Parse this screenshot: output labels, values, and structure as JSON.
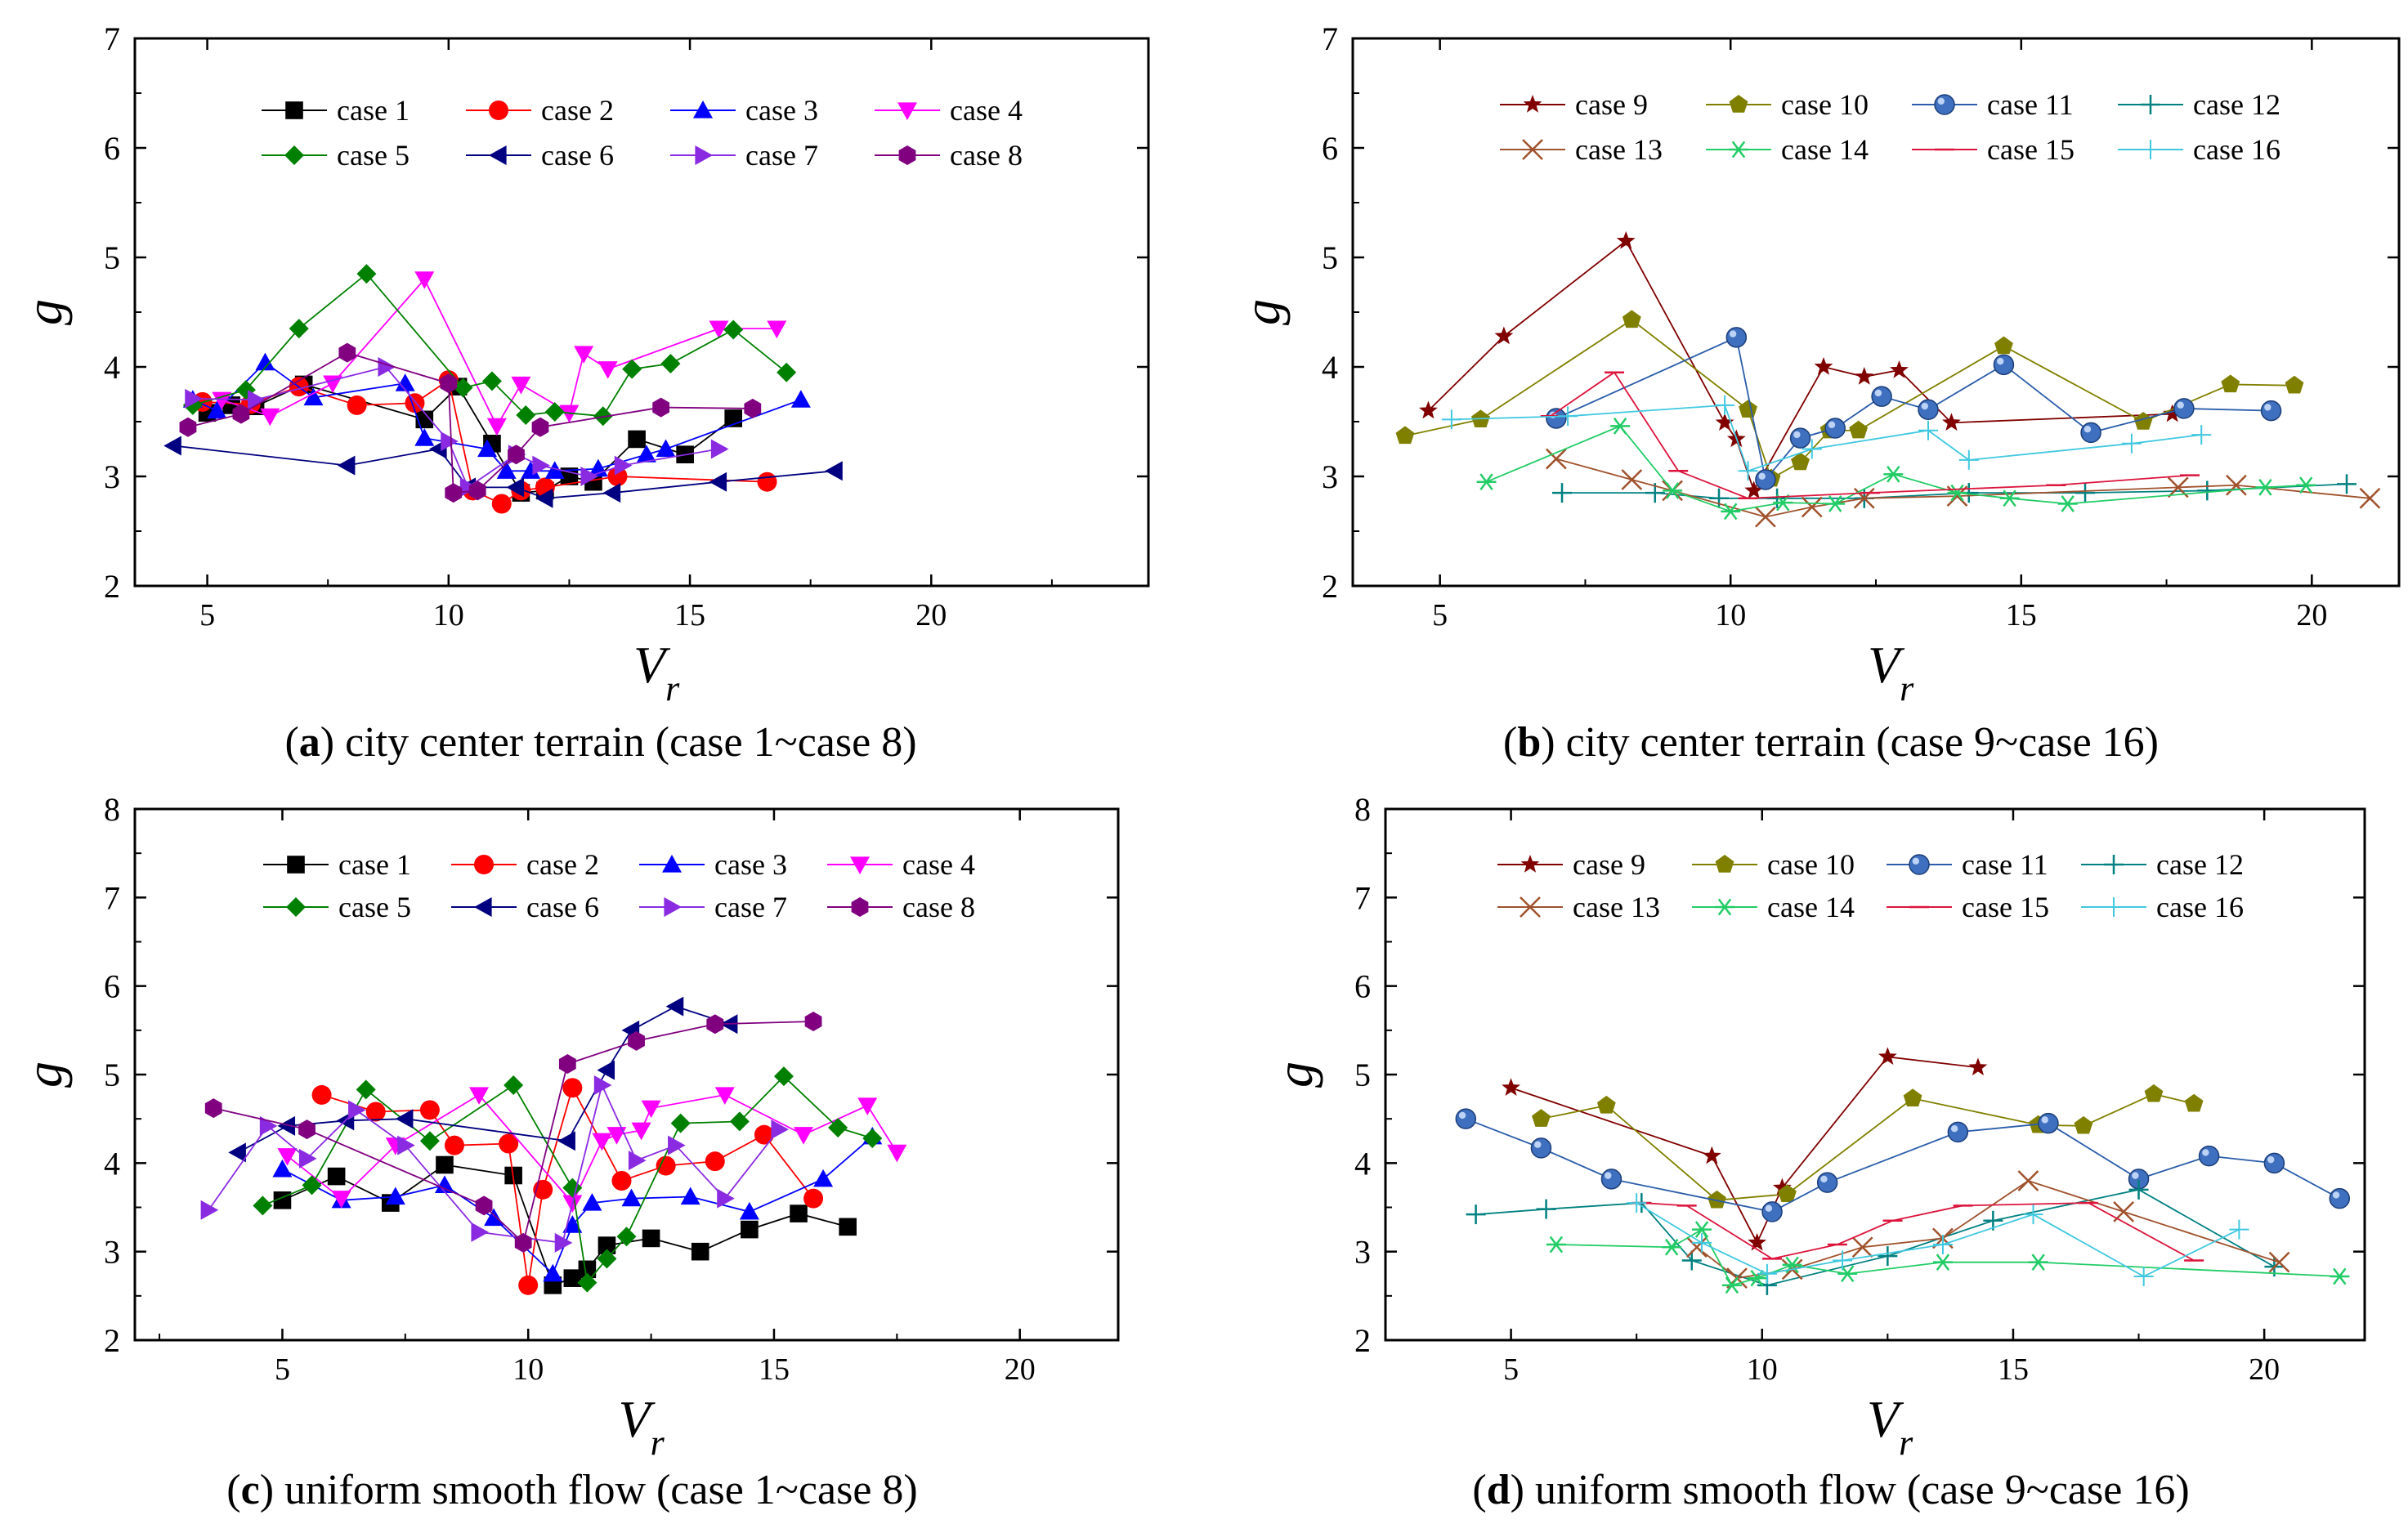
{
  "figure": {
    "xlabel": "V",
    "xlabel_sub": "r",
    "ylabel": "g"
  },
  "chart_data": [
    {
      "type": "line",
      "caption_letter": "(a)",
      "caption_text": " city center terrain (case 1~case 8)",
      "xlabel": "Vr",
      "ylabel": "g",
      "xlim": [
        3.5,
        24.5
      ],
      "ylim": [
        2,
        7
      ],
      "xticks": [
        5,
        10,
        15,
        20
      ],
      "yticks": [
        2,
        3,
        4,
        5,
        6,
        7
      ],
      "series": [
        {
          "name": "case 1",
          "color": "#000000",
          "marker": "square",
          "x": [
            5,
            5.5,
            6,
            7,
            9.5,
            10.2,
            10.9,
            11.5,
            12,
            12.5,
            13,
            13.9,
            14.9,
            15.9
          ],
          "y": [
            3.58,
            3.65,
            3.64,
            3.84,
            3.52,
            3.82,
            3.3,
            2.85,
            2.87,
            3,
            2.95,
            3.34,
            3.2,
            3.53
          ]
        },
        {
          "name": "case 2",
          "color": "#ff0000",
          "marker": "circle",
          "x": [
            4.9,
            5.9,
            6.9,
            8.1,
            9.3,
            10,
            10.5,
            11.1,
            11.5,
            12,
            13.5,
            16.6
          ],
          "y": [
            3.68,
            3.66,
            3.82,
            3.65,
            3.67,
            3.88,
            2.87,
            2.75,
            2.87,
            2.9,
            3,
            2.95
          ]
        },
        {
          "name": "case 3",
          "color": "#0000ff",
          "marker": "triangle-up",
          "x": [
            4.7,
            5.2,
            6.2,
            7.2,
            9.1,
            9.5,
            10.8,
            11.2,
            11.7,
            12.2,
            13.1,
            14.1,
            14.5,
            17.3
          ],
          "y": [
            3.7,
            3.6,
            4.04,
            3.72,
            3.85,
            3.35,
            3.25,
            3.05,
            3.05,
            3.05,
            3.07,
            3.2,
            3.25,
            3.7
          ]
        },
        {
          "name": "case 4",
          "color": "#ff00ff",
          "marker": "triangle-down",
          "x": [
            5.3,
            6.3,
            7.6,
            9.5,
            11,
            11.5,
            12.5,
            12.8,
            13.3,
            15.6,
            16.8
          ],
          "y": [
            3.7,
            3.55,
            3.85,
            4.8,
            3.46,
            3.84,
            3.58,
            4.12,
            3.98,
            4.35,
            4.35
          ]
        },
        {
          "name": "case 5",
          "color": "#008000",
          "marker": "diamond",
          "x": [
            4.7,
            5.8,
            6.9,
            8.3,
            10.3,
            10.9,
            11.6,
            12.2,
            13.2,
            13.8,
            14.6,
            15.9,
            17
          ],
          "y": [
            3.65,
            3.79,
            4.35,
            4.85,
            3.81,
            3.87,
            3.56,
            3.59,
            3.55,
            3.98,
            4.03,
            4.34,
            3.95
          ]
        },
        {
          "name": "case 6",
          "color": "#000080",
          "marker": "triangle-left",
          "x": [
            4.3,
            7.9,
            9.8,
            10.4,
            11.4,
            12,
            13.4,
            15.6,
            18
          ],
          "y": [
            3.28,
            3.1,
            3.25,
            2.9,
            2.9,
            2.8,
            2.85,
            2.95,
            3.05
          ]
        },
        {
          "name": "case 7",
          "color": "#8a2be2",
          "marker": "triangle-right",
          "x": [
            4.7,
            6,
            8.7,
            10,
            10.4,
            11.4,
            11.9,
            12.9,
            13.6,
            15.6
          ],
          "y": [
            3.71,
            3.7,
            4,
            3.32,
            2.9,
            3.2,
            3.1,
            3,
            3.1,
            3.25
          ]
        },
        {
          "name": "case 8",
          "color": "#800080",
          "marker": "hexagon",
          "x": [
            4.6,
            5.7,
            7.9,
            10,
            10.1,
            10.6,
            11.4,
            11.9,
            14.4,
            16.3
          ],
          "y": [
            3.45,
            3.57,
            4.13,
            3.85,
            2.85,
            2.87,
            3.2,
            3.45,
            3.63,
            3.62
          ]
        }
      ]
    },
    {
      "type": "line",
      "caption_letter": "(b)",
      "caption_text": " city center terrain (case 9~case 16)",
      "xlabel": "Vr",
      "ylabel": "g",
      "xlim": [
        3.5,
        21.5
      ],
      "ylim": [
        2,
        7
      ],
      "xticks": [
        5,
        10,
        15,
        20
      ],
      "yticks": [
        2,
        3,
        4,
        5,
        6,
        7
      ],
      "series": [
        {
          "name": "case 9",
          "color": "#800000",
          "marker": "star",
          "x": [
            4.8,
            6.1,
            8.2,
            9.9,
            10.1,
            10.4,
            11.6,
            12.3,
            12.9,
            13.8,
            17.6
          ],
          "y": [
            3.6,
            4.28,
            5.15,
            3.49,
            3.34,
            2.87,
            4,
            3.91,
            3.97,
            3.49,
            3.57
          ]
        },
        {
          "name": "case 10",
          "color": "#808000",
          "marker": "pentagon",
          "x": [
            4.4,
            5.7,
            8.3,
            10.3,
            10.7,
            11.2,
            11.7,
            12.2,
            14.7,
            17.1,
            18.6,
            19.7
          ],
          "y": [
            3.37,
            3.52,
            4.43,
            3.61,
            2.98,
            3.13,
            3.42,
            3.42,
            4.19,
            3.5,
            3.84,
            3.83
          ]
        },
        {
          "name": "case 11",
          "color": "#2a5caa",
          "marker": "ball",
          "x": [
            7,
            10.1,
            10.6,
            11.2,
            11.8,
            12.6,
            13.4,
            14.7,
            16.2,
            17.8,
            19.3
          ],
          "y": [
            3.53,
            4.27,
            2.97,
            3.35,
            3.44,
            3.73,
            3.61,
            4.02,
            3.4,
            3.62,
            3.6
          ]
        },
        {
          "name": "case 12",
          "color": "#008080",
          "marker": "plus",
          "x": [
            7.1,
            8.7,
            9.8,
            10.8,
            12.3,
            14.1,
            16.1,
            18.2,
            20.6
          ],
          "y": [
            2.85,
            2.85,
            2.8,
            2.8,
            2.8,
            2.85,
            2.85,
            2.87,
            2.93
          ]
        },
        {
          "name": "case 13",
          "color": "#a0522d",
          "marker": "x",
          "x": [
            7,
            8.3,
            9,
            10.6,
            11.4,
            12.3,
            13.9,
            17.7,
            18.7,
            21
          ],
          "y": [
            3.16,
            2.97,
            2.87,
            2.63,
            2.72,
            2.8,
            2.82,
            2.9,
            2.92,
            2.8
          ]
        },
        {
          "name": "case 14",
          "color": "#22cc66",
          "marker": "asterisk",
          "x": [
            5.8,
            8.1,
            9,
            10,
            10.9,
            11.8,
            12.8,
            13.9,
            14.8,
            15.8,
            19.2,
            19.9
          ],
          "y": [
            2.95,
            3.46,
            2.87,
            2.68,
            2.76,
            2.75,
            3.02,
            2.85,
            2.8,
            2.75,
            2.9,
            2.92
          ]
        },
        {
          "name": "case 15",
          "color": "#dc143c",
          "marker": "dash",
          "x": [
            6.9,
            8,
            9.1,
            10.3,
            12.4,
            15.6,
            17.9
          ],
          "y": [
            3.55,
            3.95,
            3.05,
            2.8,
            2.85,
            2.92,
            3.01
          ]
        },
        {
          "name": "case 16",
          "color": "#40c8e0",
          "marker": "plus-sm",
          "x": [
            5.2,
            7.2,
            9.9,
            10.3,
            11.4,
            13.4,
            14.1,
            16.9,
            18.1
          ],
          "y": [
            3.52,
            3.55,
            3.65,
            3.05,
            3.25,
            3.42,
            3.15,
            3.3,
            3.38
          ]
        }
      ]
    },
    {
      "type": "line",
      "caption_letter": "(c)",
      "caption_text": " uniform smooth flow (case 1~case 8)",
      "xlabel": "Vr",
      "ylabel": "g",
      "xlim": [
        2,
        22
      ],
      "ylim": [
        2,
        8
      ],
      "xticks": [
        5,
        10,
        15,
        20
      ],
      "yticks": [
        2,
        3,
        4,
        5,
        6,
        7,
        8
      ],
      "series": [
        {
          "name": "case 1",
          "color": "#000000",
          "marker": "square",
          "x": [
            5,
            6.1,
            7.2,
            8.3,
            9.7,
            10.5,
            10.9,
            11.2,
            11.6,
            12.5,
            13.5,
            14.5,
            15.5,
            16.5
          ],
          "y": [
            3.58,
            3.85,
            3.55,
            3.98,
            3.86,
            2.62,
            2.7,
            2.8,
            3.07,
            3.15,
            3,
            3.25,
            3.43,
            3.28
          ]
        },
        {
          "name": "case 2",
          "color": "#ff0000",
          "marker": "circle",
          "x": [
            5.8,
            6.9,
            8,
            8.5,
            9.6,
            10,
            10.3,
            10.9,
            11.9,
            12.8,
            13.8,
            14.8,
            15.8
          ],
          "y": [
            4.77,
            4.58,
            4.6,
            4.2,
            4.22,
            2.62,
            3.7,
            4.85,
            3.8,
            3.97,
            4.02,
            4.32,
            3.6
          ]
        },
        {
          "name": "case 3",
          "color": "#0000ff",
          "marker": "triangle-up",
          "x": [
            5,
            6.2,
            7.3,
            8.3,
            9.3,
            10.5,
            10.9,
            11.3,
            12.1,
            13.3,
            14.5,
            16,
            17
          ],
          "y": [
            3.93,
            3.58,
            3.62,
            3.75,
            3.38,
            2.75,
            3.3,
            3.55,
            3.6,
            3.62,
            3.45,
            3.82,
            4.3
          ]
        },
        {
          "name": "case 4",
          "color": "#ff00ff",
          "marker": "triangle-down",
          "x": [
            5.1,
            6.2,
            7.3,
            9,
            10.9,
            11.5,
            11.8,
            12.3,
            12.5,
            14,
            15.6,
            16.9,
            17.5
          ],
          "y": [
            4.08,
            3.6,
            4.2,
            4.77,
            3.55,
            4.25,
            4.32,
            4.37,
            4.62,
            4.77,
            4.32,
            4.65,
            4.12
          ]
        },
        {
          "name": "case 5",
          "color": "#008000",
          "marker": "diamond",
          "x": [
            4.6,
            5.6,
            6.7,
            8,
            9.7,
            10.9,
            11.2,
            11.6,
            12,
            13.1,
            14.3,
            15.2,
            16.3,
            17
          ],
          "y": [
            3.52,
            3.75,
            4.83,
            4.25,
            4.88,
            3.72,
            2.65,
            2.92,
            3.17,
            4.45,
            4.47,
            4.98,
            4.4,
            4.28
          ]
        },
        {
          "name": "case 6",
          "color": "#000080",
          "marker": "triangle-left",
          "x": [
            4.1,
            5.1,
            6.3,
            7.5,
            10.8,
            11.6,
            12.1,
            13,
            14.1
          ],
          "y": [
            4.12,
            4.42,
            4.48,
            4.5,
            4.25,
            5.05,
            5.5,
            5.77,
            5.57
          ]
        },
        {
          "name": "case 7",
          "color": "#8a2be2",
          "marker": "triangle-right",
          "x": [
            3.5,
            4.7,
            5.5,
            6.5,
            7.5,
            9,
            10.7,
            11.5,
            12.2,
            13,
            14,
            15.1
          ],
          "y": [
            3.47,
            4.42,
            4.05,
            4.6,
            4.2,
            3.22,
            3.1,
            4.88,
            4.03,
            4.2,
            3.6,
            4.38
          ]
        },
        {
          "name": "case 8",
          "color": "#800080",
          "marker": "hexagon",
          "x": [
            3.6,
            5.5,
            9.1,
            9.9,
            10.8,
            12.2,
            13.8,
            15.8
          ],
          "y": [
            4.62,
            4.38,
            3.52,
            3.1,
            5.12,
            5.38,
            5.57,
            5.6
          ]
        }
      ]
    },
    {
      "type": "line",
      "caption_letter": "(d)",
      "caption_text": " uniform smooth flow (case 9~case 16)",
      "xlabel": "Vr",
      "ylabel": "g",
      "xlim": [
        2.5,
        22
      ],
      "ylim": [
        2,
        8
      ],
      "xticks": [
        5,
        10,
        15,
        20
      ],
      "yticks": [
        2,
        3,
        4,
        5,
        6,
        7,
        8
      ],
      "series": [
        {
          "name": "case 9",
          "color": "#800000",
          "marker": "star",
          "x": [
            5,
            9,
            9.9,
            10.4,
            12.5,
            14.3
          ],
          "y": [
            4.85,
            4.08,
            3.1,
            3.72,
            5.2,
            5.08
          ]
        },
        {
          "name": "case 10",
          "color": "#808000",
          "marker": "pentagon",
          "x": [
            5.6,
            6.9,
            9.1,
            10.5,
            13,
            15.5,
            16.4,
            17.8,
            18.6
          ],
          "y": [
            4.5,
            4.65,
            3.58,
            3.65,
            4.73,
            4.43,
            4.42,
            4.78,
            4.67
          ]
        },
        {
          "name": "case 11",
          "color": "#2a5caa",
          "marker": "ball",
          "x": [
            4.1,
            5.6,
            7,
            10.2,
            11.3,
            13.9,
            15.7,
            17.5,
            18.9,
            20.2,
            21.5
          ],
          "y": [
            4.5,
            4.17,
            3.82,
            3.45,
            3.78,
            4.35,
            4.45,
            3.82,
            4.08,
            4,
            3.6
          ]
        },
        {
          "name": "case 12",
          "color": "#008080",
          "marker": "plus",
          "x": [
            4.3,
            5.7,
            7.6,
            8.6,
            10.1,
            12.5,
            14.6,
            17.5,
            20.2
          ],
          "y": [
            3.42,
            3.48,
            3.55,
            2.9,
            2.62,
            2.95,
            3.35,
            3.7,
            2.83
          ]
        },
        {
          "name": "case 13",
          "color": "#a0522d",
          "marker": "x",
          "x": [
            8.7,
            9.5,
            10.6,
            12,
            13.6,
            15.3,
            17.2,
            20.3
          ],
          "y": [
            3.05,
            2.7,
            2.8,
            3.05,
            3.15,
            3.8,
            3.45,
            2.88
          ]
        },
        {
          "name": "case 14",
          "color": "#22cc66",
          "marker": "asterisk",
          "x": [
            5.9,
            8.2,
            8.8,
            9.4,
            9.9,
            10.6,
            11.7,
            13.6,
            15.5,
            21.5
          ],
          "y": [
            3.08,
            3.05,
            3.25,
            2.62,
            2.7,
            2.85,
            2.75,
            2.88,
            2.88,
            2.72
          ]
        },
        {
          "name": "case 15",
          "color": "#dc143c",
          "marker": "dash",
          "x": [
            7.6,
            8.5,
            10.2,
            11.5,
            12.6,
            14,
            16.5,
            18.6
          ],
          "y": [
            3.55,
            3.52,
            2.92,
            3.08,
            3.35,
            3.52,
            3.55,
            2.9
          ]
        },
        {
          "name": "case 16",
          "color": "#40c8e0",
          "marker": "plus-sm",
          "x": [
            7.5,
            8.8,
            10.1,
            11.6,
            13.6,
            15.4,
            17.6,
            19.5
          ],
          "y": [
            3.55,
            3.1,
            2.75,
            2.9,
            3.08,
            3.42,
            2.72,
            3.25
          ]
        }
      ]
    }
  ]
}
